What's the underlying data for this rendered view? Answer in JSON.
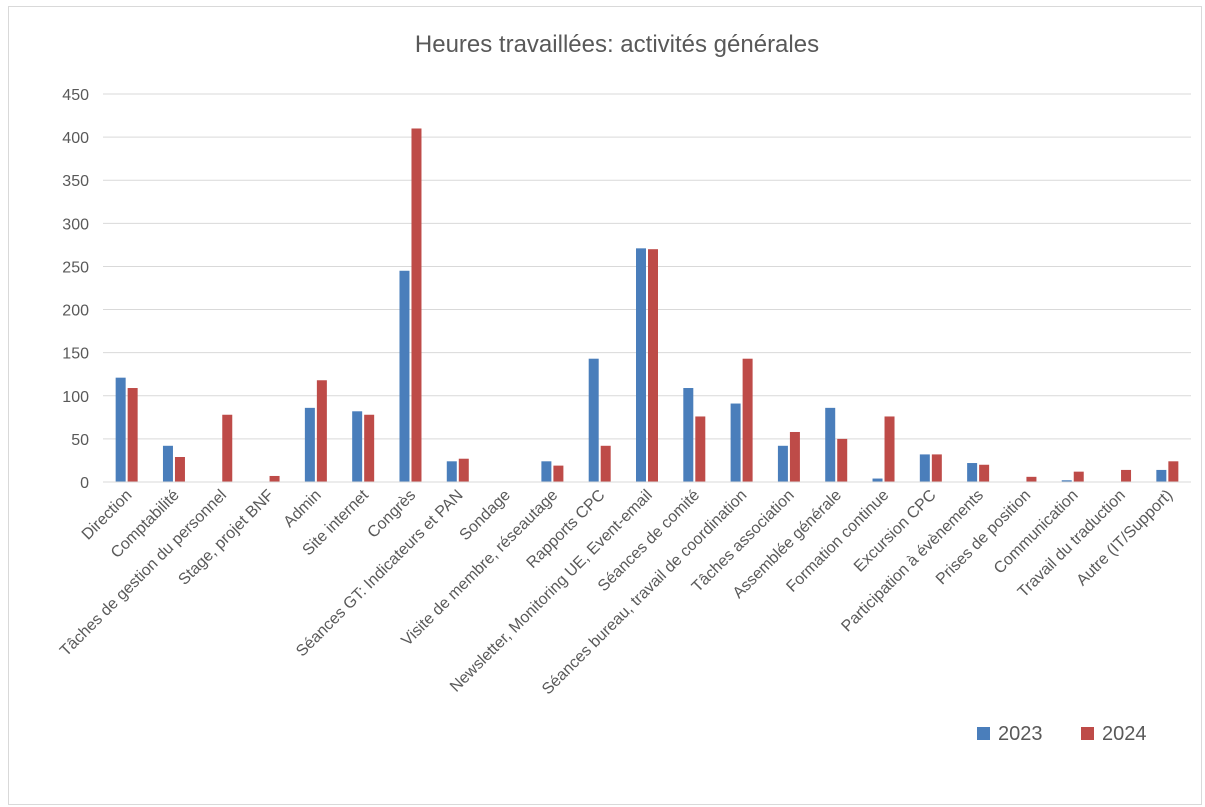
{
  "chart_data": {
    "type": "bar",
    "title": "Heures travaillées: activités générales",
    "xlabel": "",
    "ylabel": "",
    "ylim": [
      0,
      450
    ],
    "yticks": [
      0,
      50,
      100,
      150,
      200,
      250,
      300,
      350,
      400,
      450
    ],
    "grid": true,
    "legend_position": "bottom-right",
    "categories": [
      "Direction",
      "Comptabilité",
      "Tâches de gestion du personnel",
      "Stage, projet BNF",
      "Admin",
      "Site internet",
      "Congrès",
      "Séances GT: Indicateurs et PAN",
      "Sondage",
      "Visite de membre, réseautage",
      "Rapports CPC",
      "Newsletter, Monitoring UE, Event-email",
      "Séances de comité",
      "Séances bureau, travail de coordination",
      "Tâches association",
      "Assemblée générale",
      "Formation continue",
      "Excursion CPC",
      "Participation à évènements",
      "Prises de position",
      "Communication",
      "Travail du traduction",
      "Autre (IT/Support)"
    ],
    "series": [
      {
        "name": "2023",
        "color": "#4a7ebb",
        "values": [
          121,
          42,
          0,
          0,
          86,
          82,
          245,
          24,
          0,
          24,
          143,
          271,
          109,
          91,
          42,
          86,
          4,
          32,
          22,
          0,
          2,
          0,
          14
        ]
      },
      {
        "name": "2024",
        "color": "#be4b48",
        "values": [
          109,
          29,
          78,
          7,
          118,
          78,
          410,
          27,
          0,
          19,
          42,
          270,
          76,
          143,
          58,
          50,
          76,
          32,
          20,
          6,
          12,
          14,
          24
        ]
      }
    ]
  }
}
